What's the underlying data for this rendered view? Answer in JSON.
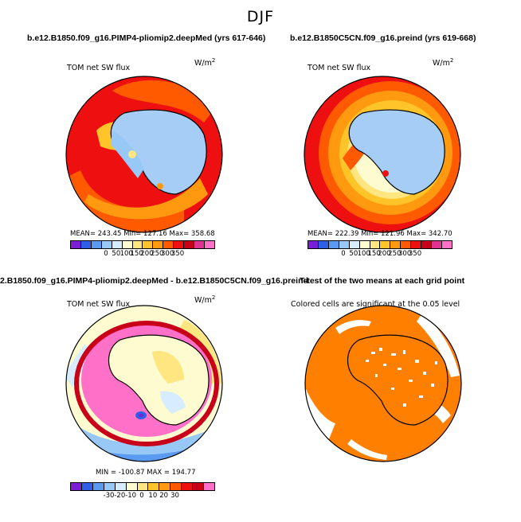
{
  "main_title": "DJF",
  "panels": [
    {
      "title": "b.e12.B1850.f09_g16.PIMP4-pliomip2.deepMed (yrs 617-646)",
      "var_label": "TOM net SW flux",
      "units_base": "W/m",
      "units_sup": "2",
      "stats": "MEAN= 243.45   Min= 127.16   Max= 358.68"
    },
    {
      "title": "b.e12.B1850C5CN.f09_g16.preind (yrs 619-668)",
      "var_label": "TOM net SW flux",
      "units_base": "W/m",
      "units_sup": "2",
      "stats": "MEAN= 222.39   Min= 121.96   Max= 342.70"
    },
    {
      "title": "2.B1850.f09_g16.PIMP4-pliomip2.deepMed - b.e12.B1850C5CN.f09_g16.preind",
      "var_label": "TOM net SW flux",
      "units_base": "W/m",
      "units_sup": "2",
      "stats": "MIN = -100.87  MAX = 194.77"
    },
    {
      "title": "T-test of the two means at each grid point",
      "var_label": "Colored cells are significant at the 0.05 level"
    }
  ],
  "chart_data": [
    {
      "type": "heatmap",
      "projection": "south-polar-stereographic",
      "colorbar_ticks": [
        "0",
        "50",
        "100",
        "150",
        "200",
        "250",
        "300",
        "350"
      ],
      "colorbar_colors": [
        "#7a1fd6",
        "#2f5fe8",
        "#5a9af0",
        "#98c8f5",
        "#d8ecff",
        "#fffbd0",
        "#ffe680",
        "#ffc42a",
        "#ff9a10",
        "#ff5a00",
        "#ee1010",
        "#c8001a",
        "#e0338f",
        "#ff70c8"
      ]
    },
    {
      "type": "heatmap",
      "projection": "south-polar-stereographic",
      "colorbar_ticks": [
        "0",
        "50",
        "100",
        "150",
        "200",
        "250",
        "300",
        "350"
      ],
      "colorbar_colors": [
        "#7a1fd6",
        "#2f5fe8",
        "#5a9af0",
        "#98c8f5",
        "#d8ecff",
        "#fffbd0",
        "#ffe680",
        "#ffc42a",
        "#ff9a10",
        "#ff5a00",
        "#ee1010",
        "#c8001a",
        "#e0338f",
        "#ff70c8"
      ]
    },
    {
      "type": "heatmap",
      "projection": "south-polar-stereographic",
      "colorbar_ticks": [
        "-30",
        "-20",
        "-10",
        "0",
        "10",
        "20",
        "30"
      ],
      "colorbar_colors": [
        "#7a1fd6",
        "#2f5fe8",
        "#5a9af0",
        "#98c8f5",
        "#d8ecff",
        "#fffbd0",
        "#ffe680",
        "#ffc42a",
        "#ff9a10",
        "#ff5a00",
        "#ee1010",
        "#c8001a",
        "#ff70c8"
      ]
    },
    {
      "type": "heatmap",
      "projection": "south-polar-stereographic",
      "significant_color": "#ff7f00"
    }
  ]
}
